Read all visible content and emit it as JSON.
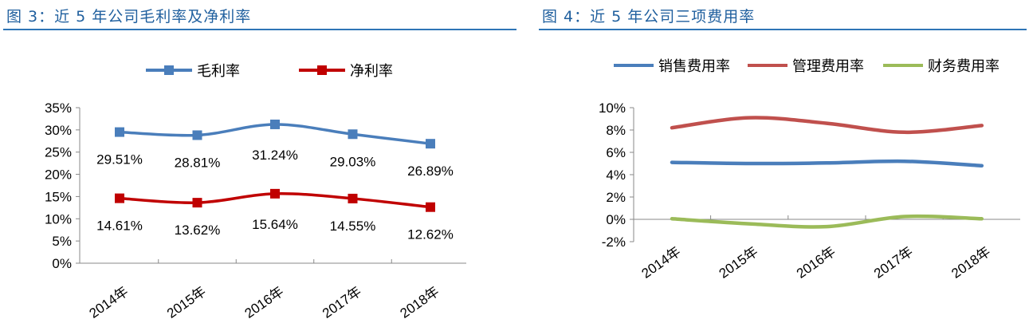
{
  "chart_data": [
    {
      "type": "line",
      "title": "图 3：近 5 年公司毛利率及净利率",
      "categories": [
        "2014年",
        "2015年",
        "2016年",
        "2017年",
        "2018年"
      ],
      "ylim": [
        0,
        35
      ],
      "yticks": [
        "0%",
        "5%",
        "10%",
        "15%",
        "20%",
        "25%",
        "30%",
        "35%"
      ],
      "legend": "top",
      "grid": false,
      "series": [
        {
          "name": "毛利率",
          "color": "#4a7ebb",
          "values": [
            29.51,
            28.81,
            31.24,
            29.03,
            26.89
          ],
          "labels": [
            "29.51%",
            "28.81%",
            "31.24%",
            "29.03%",
            "26.89%"
          ]
        },
        {
          "name": "净利率",
          "color": "#c00000",
          "values": [
            14.61,
            13.62,
            15.64,
            14.55,
            12.62
          ],
          "labels": [
            "14.61%",
            "13.62%",
            "15.64%",
            "14.55%",
            "12.62%"
          ]
        }
      ]
    },
    {
      "type": "line",
      "title": "图 4：近 5 年公司三项费用率",
      "categories": [
        "2014年",
        "2015年",
        "2016年",
        "2017年",
        "2018年"
      ],
      "ylim": [
        -2,
        10
      ],
      "yticks": [
        "-2%",
        "0%",
        "2%",
        "4%",
        "6%",
        "8%",
        "10%"
      ],
      "legend": "top",
      "grid": false,
      "series": [
        {
          "name": "销售费用率",
          "color": "#4a7ebb",
          "values": [
            5.1,
            5.0,
            5.05,
            5.2,
            4.8
          ]
        },
        {
          "name": "管理费用率",
          "color": "#c0504d",
          "values": [
            8.2,
            9.1,
            8.6,
            7.8,
            8.4
          ]
        },
        {
          "name": "财务费用率",
          "color": "#9bbb59",
          "values": [
            0.05,
            -0.4,
            -0.65,
            0.25,
            0.05
          ]
        }
      ]
    }
  ]
}
